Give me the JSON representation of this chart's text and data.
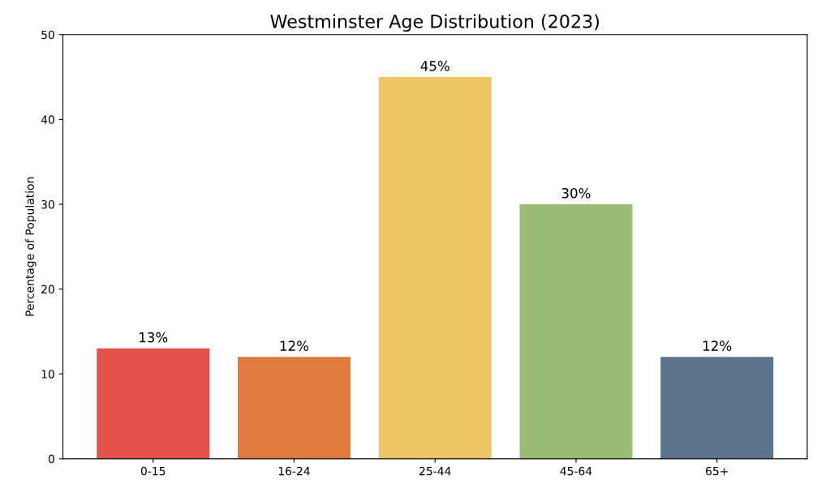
{
  "chart_data": {
    "type": "bar",
    "title": "Westminster Age Distribution (2023)",
    "ylabel": "Percentage of Population",
    "categories": [
      "0-15",
      "16-24",
      "25-44",
      "45-64",
      "65+"
    ],
    "values": [
      13,
      12,
      45,
      30,
      12
    ],
    "colors": [
      "#e4504a",
      "#e07a3e",
      "#eec664",
      "#9abc74",
      "#5e748c"
    ],
    "value_labels": [
      "13%",
      "12%",
      "45%",
      "30%",
      "12%"
    ],
    "ylim": [
      0,
      50
    ],
    "yticks": [
      0,
      10,
      20,
      30,
      40,
      50
    ],
    "grid": false,
    "legend": false
  }
}
